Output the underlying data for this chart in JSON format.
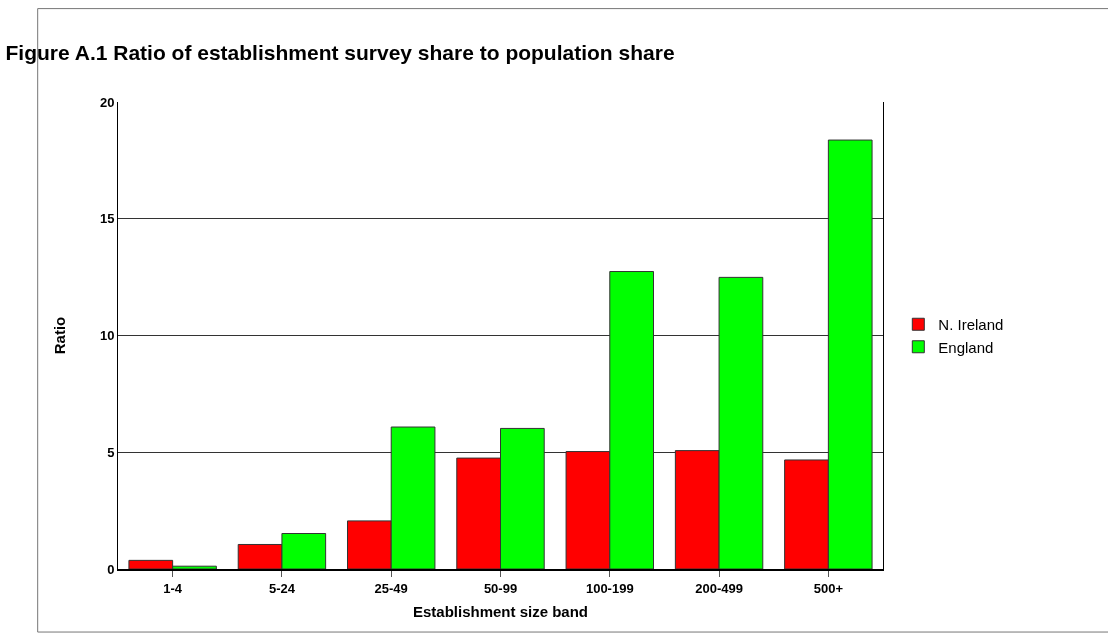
{
  "chart_data": {
    "type": "bar",
    "title": "Figure A.1 Ratio of establishment survey share to population share",
    "xlabel": "Establishment size band",
    "ylabel": "Ratio",
    "categories": [
      "1-4",
      "5-24",
      "25-49",
      "50-99",
      "100-199",
      "200-499",
      "500+"
    ],
    "series": [
      {
        "name": "N. Ireland",
        "color": "#ff0000",
        "values": [
          0.37,
          1.05,
          2.06,
          4.75,
          5.03,
          5.07,
          4.67
        ]
      },
      {
        "name": "England",
        "color": "#00ff00",
        "values": [
          0.12,
          1.52,
          6.08,
          6.02,
          12.74,
          12.49,
          18.37
        ]
      }
    ],
    "ylim": [
      0,
      20
    ],
    "yticks": [
      0,
      5,
      10,
      15,
      20
    ],
    "grid": "y",
    "legend": "right"
  }
}
